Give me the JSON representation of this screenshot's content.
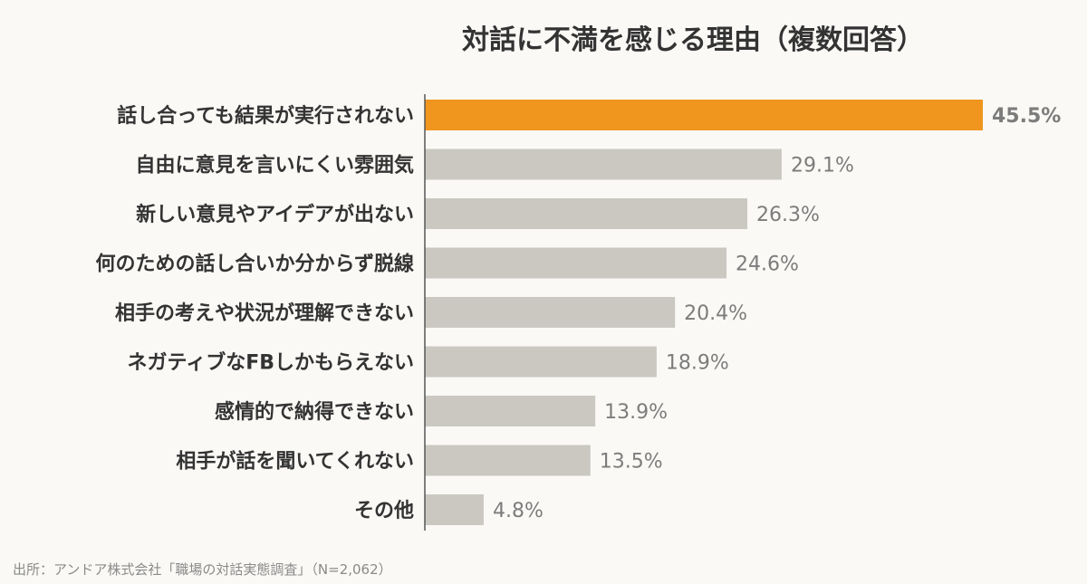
{
  "chart_data": {
    "type": "bar",
    "orientation": "horizontal",
    "title": "対話に不満を感じる理由（複数回答）",
    "categories": [
      "話し合っても結果が実行されない",
      "自由に意見を言いにくい雰囲気",
      "新しい意見やアイデアが出ない",
      "何のための話し合いか分からず脱線",
      "相手の考えや状況が理解できない",
      "ネガティブなFBしかもらえない",
      "感情的で納得できない",
      "相手が話を聞いてくれない",
      "その他"
    ],
    "values": [
      45.5,
      29.1,
      26.3,
      24.6,
      20.4,
      18.9,
      13.9,
      13.5,
      4.8
    ],
    "value_labels": [
      "45.5%",
      "29.1%",
      "26.3%",
      "24.6%",
      "20.4%",
      "18.9%",
      "13.9%",
      "13.5%",
      "4.8%"
    ],
    "unit": "%",
    "xlim": [
      0,
      45.5
    ],
    "highlight_index": 0,
    "grid": false,
    "legend": "none",
    "colors": {
      "highlight_bar": "#f0961f",
      "highlight_text": "#e08a14",
      "bar": "#cbc8c2",
      "axis": "#555555",
      "background": "#faf9f6"
    }
  },
  "source": "出所：アンドア株式会社「職場の対話実態調査」（N=2,062）"
}
